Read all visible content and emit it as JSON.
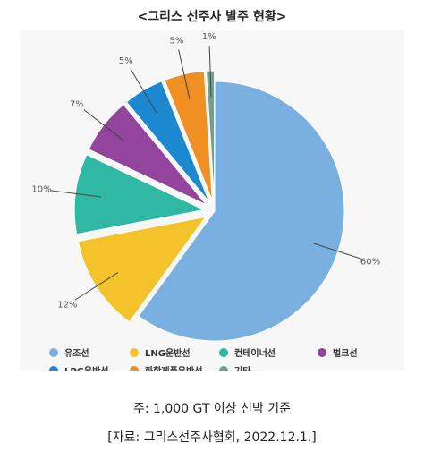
{
  "title": "<그리스 선주사 발주 현황>",
  "note": "주: 1,000 GT 이상 선박 기준",
  "source": "[자료: 그리스선주사협회, 2022.12.1.]",
  "chart_data": {
    "type": "pie",
    "title": "<그리스 선주사 발주 현황>",
    "unit": "%",
    "slices": [
      {
        "name": "유조선",
        "value": 60,
        "label": "60%",
        "color": "#7ab0e0"
      },
      {
        "name": "LNG운반선",
        "value": 12,
        "label": "12%",
        "color": "#f4c22b"
      },
      {
        "name": "컨테이너선",
        "value": 10,
        "label": "10%",
        "color": "#2fb9a4"
      },
      {
        "name": "벌크선",
        "value": 7,
        "label": "7%",
        "color": "#93449c"
      },
      {
        "name": "LPG운반선",
        "value": 5,
        "label": "5%",
        "color": "#1c88cf"
      },
      {
        "name": "화학제품운반선",
        "value": 5,
        "label": "5%",
        "color": "#f08f22"
      },
      {
        "name": "기타",
        "value": 1,
        "label": "1%",
        "color": "#7a9c8c"
      }
    ],
    "legend_position": "bottom"
  }
}
